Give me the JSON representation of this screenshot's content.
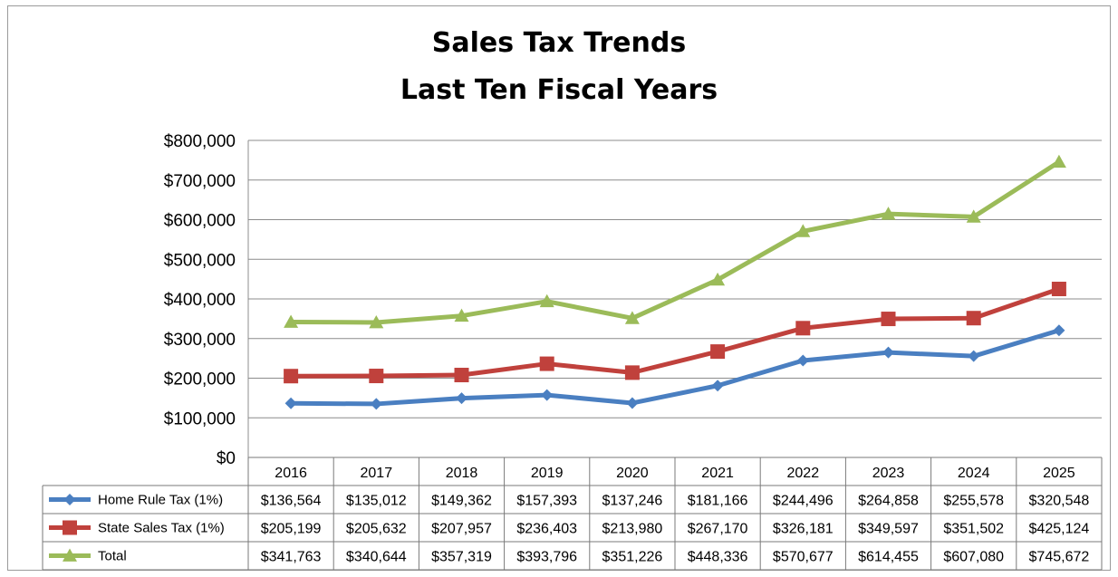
{
  "chart_data": {
    "type": "line",
    "title_line1": "Sales Tax Trends",
    "title_line2": "Last Ten Fiscal Years",
    "categories": [
      "2016",
      "2017",
      "2018",
      "2019",
      "2020",
      "2021",
      "2022",
      "2023",
      "2024",
      "2025"
    ],
    "ylim": [
      0,
      800000
    ],
    "yticks": [
      "$0",
      "$100,000",
      "$200,000",
      "$300,000",
      "$400,000",
      "$500,000",
      "$600,000",
      "$700,000",
      "$800,000"
    ],
    "grid": true,
    "legend_placement": "data-table",
    "series": [
      {
        "name": "Home Rule Tax (1%)",
        "color": "#4a7fc1",
        "marker": "diamond",
        "values": [
          136564,
          135012,
          149362,
          157393,
          137246,
          181166,
          244496,
          264858,
          255578,
          320548
        ],
        "labels": [
          "$136,564",
          "$135,012",
          "$149,362",
          "$157,393",
          "$137,246",
          "$181,166",
          "$244,496",
          "$264,858",
          "$255,578",
          "$320,548"
        ]
      },
      {
        "name": "State Sales Tax (1%)",
        "color": "#c0413c",
        "marker": "square",
        "values": [
          205199,
          205632,
          207957,
          236403,
          213980,
          267170,
          326181,
          349597,
          351502,
          425124
        ],
        "labels": [
          "$205,199",
          "$205,632",
          "$207,957",
          "$236,403",
          "$213,980",
          "$267,170",
          "$326,181",
          "$349,597",
          "$351,502",
          "$425,124"
        ]
      },
      {
        "name": "Total",
        "color": "#9bbb59",
        "marker": "triangle",
        "values": [
          341763,
          340644,
          357319,
          393796,
          351226,
          448336,
          570677,
          614455,
          607080,
          745672
        ],
        "labels": [
          "$341,763",
          "$340,644",
          "$357,319",
          "$393,796",
          "$351,226",
          "$448,336",
          "$570,677",
          "$614,455",
          "$607,080",
          "$745,672"
        ]
      }
    ]
  }
}
